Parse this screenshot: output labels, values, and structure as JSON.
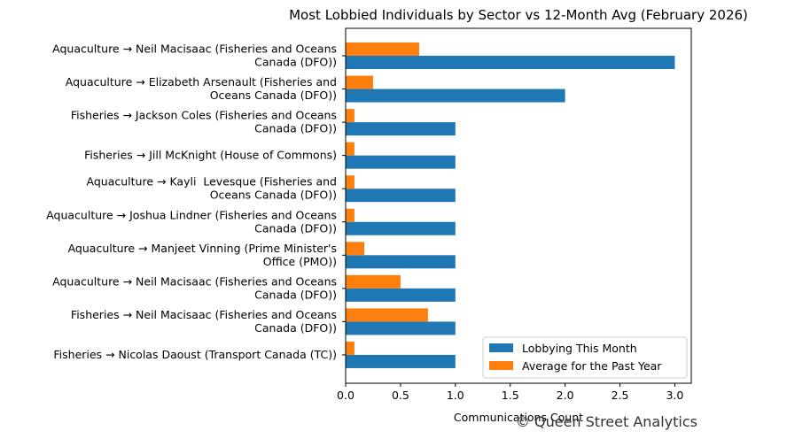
{
  "chart_data": {
    "type": "bar",
    "orientation": "horizontal",
    "title": "Most Lobbied Individuals by Sector vs 12-Month Avg (February 2026)",
    "xlabel": "Communications Count",
    "ylabel": "",
    "xlim": [
      0,
      3.15
    ],
    "xticks": [
      "0.0",
      "0.5",
      "1.0",
      "1.5",
      "2.0",
      "2.5",
      "3.0"
    ],
    "grid": false,
    "legend_position": "lower-right",
    "categories": [
      [
        "Aquaculture → Neil Macisaac (Fisheries and Oceans",
        "Canada (DFO))"
      ],
      [
        "Aquaculture → Elizabeth Arsenault (Fisheries and",
        "Oceans Canada (DFO))"
      ],
      [
        "Fisheries → Jackson Coles (Fisheries and Oceans",
        "Canada (DFO))"
      ],
      [
        "Fisheries → Jill McKnight (House of Commons)"
      ],
      [
        "Aquaculture → Kayli  Levesque (Fisheries and",
        "Oceans Canada (DFO))"
      ],
      [
        "Aquaculture → Joshua Lindner (Fisheries and Oceans",
        "Canada (DFO))"
      ],
      [
        "Aquaculture → Manjeet Vinning (Prime Minister's",
        "Office (PMO))"
      ],
      [
        "Aquaculture → Neil Macisaac (Fisheries and Oceans",
        "Canada (DFO))"
      ],
      [
        "Fisheries → Neil Macisaac (Fisheries and Oceans",
        "Canada (DFO))"
      ],
      [
        "Fisheries → Nicolas Daoust (Transport Canada (TC))"
      ]
    ],
    "series": [
      {
        "name": "Lobbying This Month",
        "color": "#1f77b4",
        "values": [
          3,
          2,
          1,
          1,
          1,
          1,
          1,
          1,
          1,
          1
        ]
      },
      {
        "name": "Average for the Past Year",
        "color": "#ff7f0e",
        "values": [
          0.67,
          0.25,
          0.08,
          0.08,
          0.08,
          0.08,
          0.17,
          0.5,
          0.75,
          0.08
        ]
      }
    ]
  },
  "watermark": "© Queen Street Analytics"
}
